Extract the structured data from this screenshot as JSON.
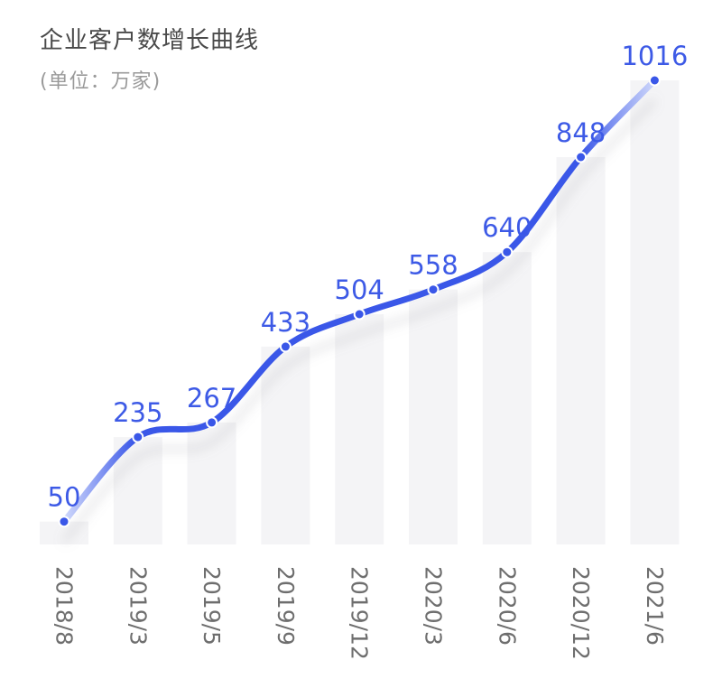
{
  "header": {
    "title": "企业客户数增长曲线",
    "subtitle": "(单位：万家)"
  },
  "chart_data": {
    "type": "line",
    "title": "企业客户数增长曲线",
    "subtitle": "(单位：万家)",
    "categories": [
      "2018/8",
      "2019/3",
      "2019/5",
      "2019/9",
      "2019/12",
      "2020/3",
      "2020/6",
      "2020/12",
      "2021/6"
    ],
    "values": [
      50,
      235,
      267,
      433,
      504,
      558,
      640,
      848,
      1016
    ],
    "data_labels": [
      "50",
      "235",
      "267",
      "433",
      "504",
      "558",
      "640",
      "848",
      "1016"
    ],
    "ylim": [
      0,
      1016
    ],
    "grid": false,
    "legend": "none",
    "x_tick_rotation": "vertical",
    "colors": {
      "line": "#3a57e8",
      "line_fade": "#c9d3fb",
      "bar": "#f4f4f6",
      "label": "#3d5ae6",
      "tick": "#6e6e6e"
    }
  }
}
